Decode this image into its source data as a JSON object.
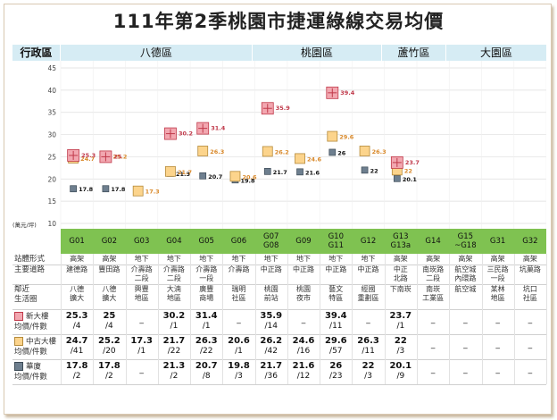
{
  "title": "111年第2季桃園市捷運綠線交易均價",
  "district_header": "行政區",
  "districts": [
    "八德區",
    "桃園區",
    "蘆竹區",
    "大園區"
  ],
  "y_unit": "(萬元/坪)",
  "stations": [
    "G01",
    "G02",
    "G03",
    "G04",
    "G05",
    "G06",
    "G07\nG08",
    "G09",
    "G10\nG11",
    "G12",
    "G13\nG13a",
    "G14",
    "G15\n~G18",
    "G31",
    "G32"
  ],
  "rows": {
    "form_label": "站體形式",
    "form": [
      "高架",
      "高架",
      "地下",
      "地下",
      "地下",
      "地下",
      "地下",
      "地下",
      "地下",
      "地下",
      "高架",
      "高架",
      "高架",
      "高架",
      "高架"
    ],
    "road_label": "主要道路",
    "road": [
      "建德路",
      "豐田路",
      "介壽路\n二段",
      "介壽路\n二段",
      "介壽路\n一段",
      "介壽路",
      "中正路",
      "中正路",
      "中正路",
      "中正路",
      "中正\n北路",
      "南崁路\n二段",
      "航空城\n內環路",
      "三民路\n一段",
      "坑菓路"
    ],
    "life_label": "鄰近\n生活圈",
    "life": [
      "八德\n擴大",
      "八德\n擴大",
      "興豐\n地區",
      "大湳\n地區",
      "廣豐\n商場",
      "瑞明\n社區",
      "桃園\n前站",
      "桃園\n夜市",
      "藝文\n特區",
      "經國\n重劃區",
      "下南崁",
      "南崁\n工業區",
      "航空城",
      "某林\n地區",
      "坑口\n社區"
    ]
  },
  "legend": {
    "new": "新大樓\n均價/件數",
    "mid": "中古大樓\n均價/件數",
    "apt": "華廈\n均價/件數"
  },
  "colors": {
    "new_fill": "#f2a7b0",
    "new_stroke": "#c0394a",
    "mid_fill": "#fcd48c",
    "mid_stroke": "#b58a3a",
    "apt_fill": "#6e7f8f",
    "apt_stroke": "#3d4b57",
    "new_label": "#c0394a",
    "mid_label": "#d9892a",
    "apt_label": "#111111",
    "district_bg": "#d6ecf4",
    "station_bg": "#7fc251"
  },
  "chart_data": {
    "type": "scatter",
    "x": [
      "G01",
      "G02",
      "G03",
      "G04",
      "G05",
      "G06",
      "G07\nG08",
      "G09",
      "G10\nG11",
      "G12",
      "G13\nG13a",
      "G14",
      "G15\n~G18",
      "G31",
      "G32"
    ],
    "ylim": [
      10,
      45
    ],
    "yticks": [
      10,
      15,
      20,
      25,
      30,
      35,
      40,
      45
    ],
    "ylabel": "(萬元/坪)",
    "series": [
      {
        "name": "新大樓",
        "values": [
          25.3,
          25,
          null,
          30.2,
          31.4,
          null,
          35.9,
          null,
          39.4,
          null,
          23.7,
          null,
          null,
          null,
          null
        ],
        "counts": [
          "/4",
          "/4",
          null,
          "/1",
          "/1",
          null,
          "/14",
          null,
          "/11",
          null,
          "/1",
          null,
          null,
          null,
          null
        ],
        "labels": [
          "25.3",
          "25",
          null,
          "30.2",
          "31.4",
          null,
          "35.9",
          null,
          "39.4",
          null,
          "23.7",
          null,
          null,
          null,
          null
        ]
      },
      {
        "name": "中古大樓",
        "values": [
          24.7,
          25.2,
          17.3,
          21.7,
          26.3,
          20.6,
          26.2,
          24.6,
          29.6,
          26.3,
          22,
          null,
          null,
          null,
          null
        ],
        "counts": [
          "/41",
          "/20",
          "/1",
          "/22",
          "/22",
          "/1",
          "/42",
          "/16",
          "/57",
          "/11",
          "/3",
          null,
          null,
          null,
          null
        ],
        "labels": [
          "24.7",
          "25.2",
          "17.3",
          "21.7",
          "26.3",
          "20.6",
          "26.2",
          "24.6",
          "29.6",
          "26.3",
          "22",
          null,
          null,
          null,
          null
        ]
      },
      {
        "name": "華廈",
        "values": [
          17.8,
          17.8,
          null,
          21.3,
          20.7,
          19.8,
          21.7,
          21.6,
          26,
          22,
          20.1,
          null,
          null,
          null,
          null
        ],
        "counts": [
          "/2",
          "/2",
          null,
          "/2",
          "/8",
          "/3",
          "/36",
          "/12",
          "/23",
          "/3",
          "/9",
          null,
          null,
          null,
          null
        ],
        "labels": [
          "17.8",
          "17.8",
          null,
          "21.3",
          "20.7",
          "19.8",
          "21.7",
          "21.6",
          "26",
          "22",
          "20.1",
          null,
          null,
          null,
          null
        ]
      }
    ]
  },
  "dash": "_"
}
